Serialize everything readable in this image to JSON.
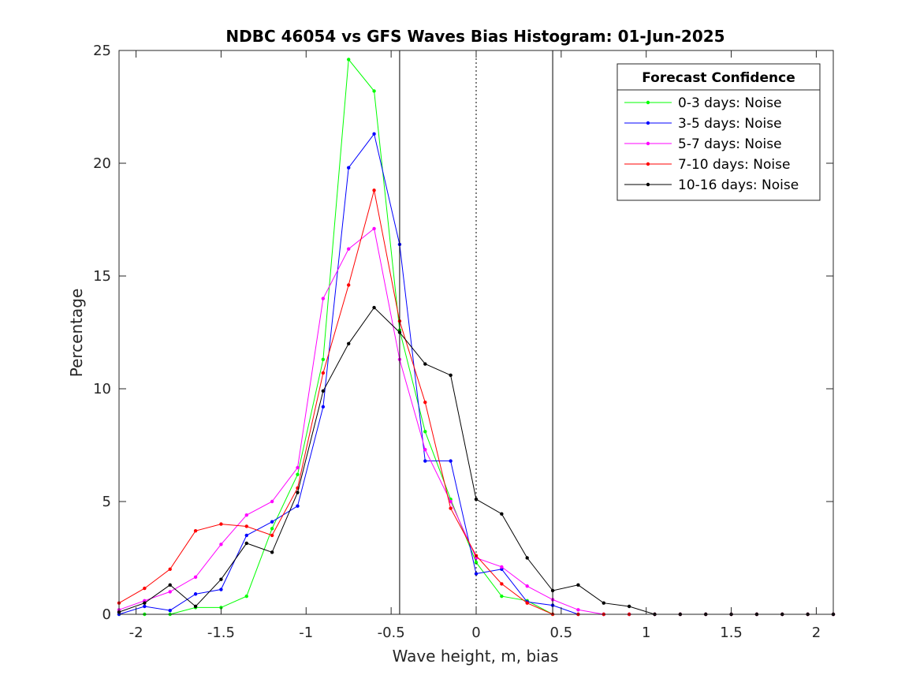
{
  "chart_data": {
    "type": "line",
    "title": "NDBC 46054 vs GFS Waves Bias Histogram: 01-Jun-2025",
    "xlabel": "Wave height, m, bias",
    "ylabel": "Percentage",
    "xlim": [
      -2.1,
      2.1
    ],
    "ylim": [
      0,
      25
    ],
    "xticks": [
      -2,
      -1.5,
      -1,
      -0.5,
      0,
      0.5,
      1,
      1.5,
      2
    ],
    "xtick_labels": [
      "-2",
      "-1.5",
      "-1",
      "-0.5",
      "0",
      "0.5",
      "1",
      "1.5",
      "2"
    ],
    "yticks": [
      0,
      5,
      10,
      15,
      20,
      25
    ],
    "ytick_labels": [
      "0",
      "5",
      "10",
      "15",
      "20",
      "25"
    ],
    "grid": false,
    "vertical_lines": [
      {
        "x": -0.45,
        "style": "solid"
      },
      {
        "x": 0,
        "style": "dotted"
      },
      {
        "x": 0.45,
        "style": "solid"
      }
    ],
    "legend": {
      "title": "Forecast Confidence",
      "placement": "top-right"
    },
    "x": [
      -2.1,
      -1.95,
      -1.8,
      -1.65,
      -1.5,
      -1.35,
      -1.2,
      -1.05,
      -0.9,
      -0.75,
      -0.6,
      -0.45,
      -0.3,
      -0.15,
      0,
      0.15,
      0.3,
      0.45,
      0.6,
      0.75,
      0.9,
      1.05,
      1.2,
      1.35,
      1.5,
      1.65,
      1.8,
      1.95,
      2.1
    ],
    "series": [
      {
        "name": "0-3 days: Noise",
        "color": "#00ff00",
        "values": [
          0.0,
          0.0,
          0.0,
          0.3,
          0.3,
          0.8,
          3.8,
          6.2,
          11.3,
          24.6,
          23.2,
          12.6,
          8.1,
          5.1,
          2.3,
          0.8,
          0.6,
          0,
          0,
          0,
          0,
          0,
          0,
          0,
          0,
          0,
          0,
          0,
          0
        ]
      },
      {
        "name": "3-5 days: Noise",
        "color": "#0000ff",
        "values": [
          0.0,
          0.35,
          0.17,
          0.9,
          1.1,
          3.5,
          4.1,
          4.8,
          9.2,
          19.8,
          21.3,
          16.4,
          6.8,
          6.8,
          1.8,
          2.0,
          0.55,
          0.4,
          0,
          0,
          0,
          0,
          0,
          0,
          0,
          0,
          0,
          0,
          0
        ]
      },
      {
        "name": "5-7 days: Noise",
        "color": "#ff00ff",
        "values": [
          0.2,
          0.6,
          1.0,
          1.65,
          3.1,
          4.4,
          5.0,
          6.5,
          14.0,
          16.2,
          17.1,
          11.3,
          7.3,
          5.0,
          2.5,
          2.1,
          1.25,
          0.65,
          0.2,
          0,
          0,
          0,
          0,
          0,
          0,
          0,
          0,
          0,
          0
        ]
      },
      {
        "name": "7-10 days: Noise",
        "color": "#ff0000",
        "values": [
          0.5,
          1.15,
          2.0,
          3.7,
          4.0,
          3.9,
          3.5,
          5.6,
          10.7,
          14.6,
          18.8,
          13.0,
          9.4,
          4.7,
          2.6,
          1.35,
          0.5,
          0.0,
          0,
          0,
          0,
          0,
          0,
          0,
          0,
          0,
          0,
          0,
          0
        ]
      },
      {
        "name": "10-16 days: Noise",
        "color": "#000000",
        "values": [
          0.1,
          0.5,
          1.3,
          0.35,
          1.55,
          3.15,
          2.75,
          5.4,
          9.9,
          12.0,
          13.6,
          12.5,
          11.1,
          10.6,
          5.1,
          4.45,
          2.5,
          1.05,
          1.3,
          0.5,
          0.35,
          0.0,
          0,
          0,
          0,
          0,
          0,
          0,
          0
        ]
      }
    ]
  }
}
